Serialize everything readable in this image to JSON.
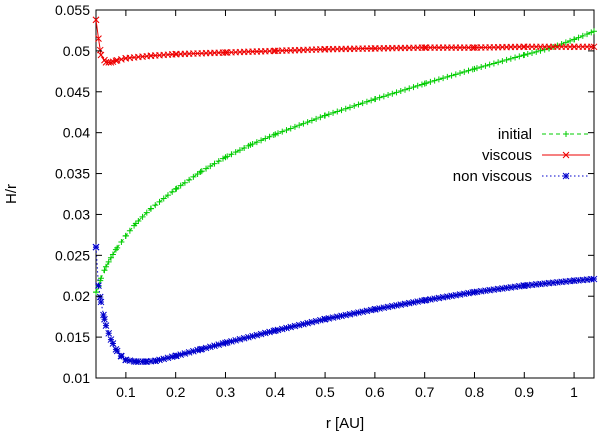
{
  "chart_data": {
    "type": "line",
    "title": "",
    "xlabel": "r [AU]",
    "ylabel": "H/r",
    "xlim": [
      0.04,
      1.04
    ],
    "ylim": [
      0.01,
      0.055
    ],
    "grid": false,
    "legend_position": "top-right",
    "x_ticks": [
      "0.1",
      "0.2",
      "0.3",
      "0.4",
      "0.5",
      "0.6",
      "0.7",
      "0.8",
      "0.9",
      "1"
    ],
    "y_ticks": [
      "0.01",
      "0.015",
      "0.02",
      "0.025",
      "0.03",
      "0.035",
      "0.04",
      "0.045",
      "0.05",
      "0.055"
    ],
    "series": [
      {
        "name": "initial",
        "color": "#00cc00",
        "line_style": "dashed",
        "marker": "plus",
        "points": [
          [
            0.04,
            0.0205
          ],
          [
            0.045,
            0.0212
          ],
          [
            0.05,
            0.0222
          ],
          [
            0.06,
            0.0236
          ],
          [
            0.07,
            0.0247
          ],
          [
            0.08,
            0.0257
          ],
          [
            0.1,
            0.0274
          ],
          [
            0.12,
            0.0289
          ],
          [
            0.15,
            0.0307
          ],
          [
            0.2,
            0.0331
          ],
          [
            0.25,
            0.0352
          ],
          [
            0.3,
            0.037
          ],
          [
            0.35,
            0.0385
          ],
          [
            0.4,
            0.0398
          ],
          [
            0.5,
            0.0421
          ],
          [
            0.6,
            0.0441
          ],
          [
            0.7,
            0.046
          ],
          [
            0.8,
            0.0478
          ],
          [
            0.9,
            0.0495
          ],
          [
            0.95,
            0.0503
          ],
          [
            1.0,
            0.0514
          ],
          [
            1.04,
            0.0524
          ]
        ]
      },
      {
        "name": "viscous",
        "color": "#ee0000",
        "line_style": "solid",
        "marker": "cross",
        "points": [
          [
            0.04,
            0.0538
          ],
          [
            0.045,
            0.0515
          ],
          [
            0.05,
            0.0495
          ],
          [
            0.06,
            0.0486
          ],
          [
            0.07,
            0.0486
          ],
          [
            0.08,
            0.0488
          ],
          [
            0.1,
            0.0491
          ],
          [
            0.15,
            0.0494
          ],
          [
            0.2,
            0.0496
          ],
          [
            0.3,
            0.0498
          ],
          [
            0.4,
            0.05
          ],
          [
            0.5,
            0.0502
          ],
          [
            0.6,
            0.0503
          ],
          [
            0.7,
            0.0504
          ],
          [
            0.8,
            0.0504
          ],
          [
            0.9,
            0.0505
          ],
          [
            1.0,
            0.0505
          ],
          [
            1.04,
            0.0505
          ]
        ]
      },
      {
        "name": "non viscous",
        "color": "#0000cc",
        "line_style": "dotted",
        "marker": "star",
        "points": [
          [
            0.04,
            0.026
          ],
          [
            0.045,
            0.0213
          ],
          [
            0.05,
            0.0193
          ],
          [
            0.055,
            0.0177
          ],
          [
            0.06,
            0.0164
          ],
          [
            0.07,
            0.0147
          ],
          [
            0.08,
            0.0135
          ],
          [
            0.09,
            0.0127
          ],
          [
            0.1,
            0.0122
          ],
          [
            0.12,
            0.012
          ],
          [
            0.14,
            0.012
          ],
          [
            0.16,
            0.0121
          ],
          [
            0.2,
            0.0127
          ],
          [
            0.25,
            0.0135
          ],
          [
            0.3,
            0.0143
          ],
          [
            0.4,
            0.0158
          ],
          [
            0.5,
            0.0172
          ],
          [
            0.6,
            0.0184
          ],
          [
            0.7,
            0.0195
          ],
          [
            0.8,
            0.0205
          ],
          [
            0.9,
            0.0213
          ],
          [
            1.0,
            0.0219
          ],
          [
            1.04,
            0.0221
          ]
        ]
      }
    ]
  }
}
